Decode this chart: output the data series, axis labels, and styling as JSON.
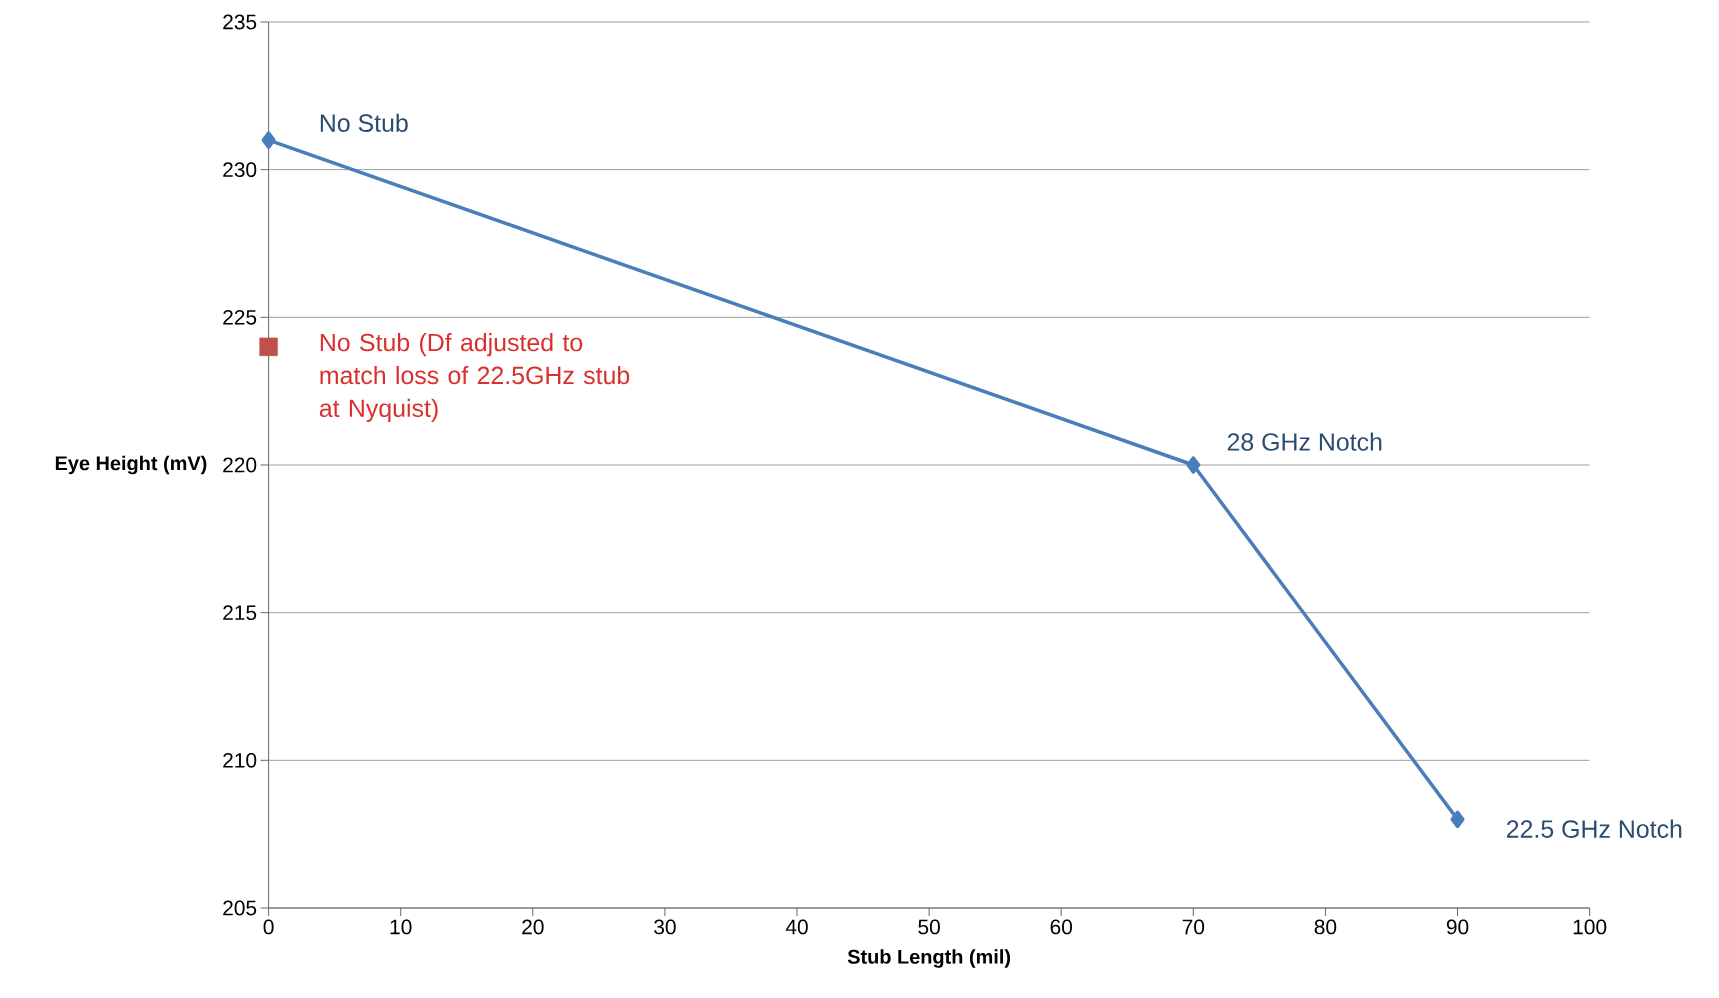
{
  "chart_data": {
    "type": "line",
    "xlabel": "Stub Length (mil)",
    "ylabel": "Eye Height (mV)",
    "series": [
      {
        "color": "#4a7ebb",
        "marker": "diamond",
        "x": [
          0,
          70,
          90
        ],
        "values": [
          231,
          220,
          208
        ]
      },
      {
        "type": "scatter",
        "color": "#c0504d",
        "marker": "square",
        "x": [
          0
        ],
        "values": [
          224
        ]
      }
    ],
    "annotations": [
      {
        "text": "No Stub",
        "x": 0,
        "y": 231
      },
      {
        "text": "No Stub (Df adjusted to match loss of 22.5GHz stub at Nyquist)",
        "x": 0,
        "y": 224
      },
      {
        "text": "28 GHz Notch",
        "x": 70,
        "y": 220
      },
      {
        "text": "22.5 GHz Notch",
        "x": 90,
        "y": 208
      }
    ],
    "xlim": [
      0,
      100
    ],
    "xticks": [
      0,
      10,
      20,
      30,
      40,
      50,
      60,
      70,
      80,
      90,
      100
    ],
    "ylim": [
      205,
      235
    ],
    "yticks": [
      205,
      210,
      215,
      220,
      225,
      230,
      235
    ],
    "grid": "y"
  }
}
